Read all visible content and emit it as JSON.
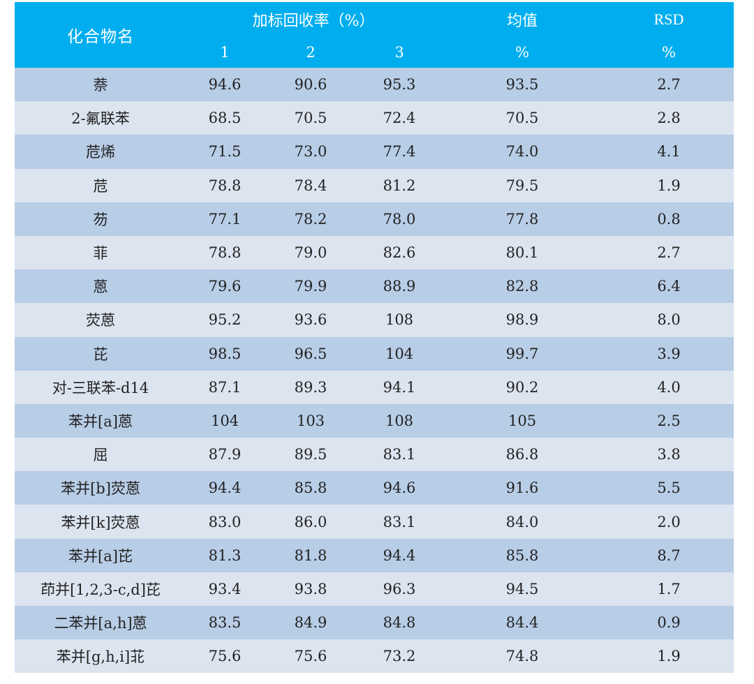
{
  "table": {
    "header": {
      "compound_name": "化合物名",
      "recovery_group": "加标回收率（%）",
      "replicates": [
        "1",
        "2",
        "3"
      ],
      "mean": "均值",
      "mean_unit": "%",
      "rsd": "RSD",
      "rsd_unit": "%"
    },
    "colors": {
      "header_bg": "#00AEEF",
      "header_text": "#FFFFFF",
      "row_dark": "#B8CDE6",
      "row_light": "#DCE4F0",
      "body_text": "#222222"
    },
    "rows": [
      {
        "name": "萘",
        "r1": "94.6",
        "r2": "90.6",
        "r3": "95.3",
        "mean": "93.5",
        "rsd": "2.7"
      },
      {
        "name": "2-氟联苯",
        "r1": "68.5",
        "r2": "70.5",
        "r3": "72.4",
        "mean": "70.5",
        "rsd": "2.8"
      },
      {
        "name": "苊烯",
        "r1": "71.5",
        "r2": "73.0",
        "r3": "77.4",
        "mean": "74.0",
        "rsd": "4.1"
      },
      {
        "name": "苊",
        "r1": "78.8",
        "r2": "78.4",
        "r3": "81.2",
        "mean": "79.5",
        "rsd": "1.9"
      },
      {
        "name": "芴",
        "r1": "77.1",
        "r2": "78.2",
        "r3": "78.0",
        "mean": "77.8",
        "rsd": "0.8"
      },
      {
        "name": "菲",
        "r1": "78.8",
        "r2": "79.0",
        "r3": "82.6",
        "mean": "80.1",
        "rsd": "2.7"
      },
      {
        "name": "蒽",
        "r1": "79.6",
        "r2": "79.9",
        "r3": "88.9",
        "mean": "82.8",
        "rsd": "6.4"
      },
      {
        "name": "荧蒽",
        "r1": "95.2",
        "r2": "93.6",
        "r3": "108",
        "mean": "98.9",
        "rsd": "8.0"
      },
      {
        "name": "芘",
        "r1": "98.5",
        "r2": "96.5",
        "r3": "104",
        "mean": "99.7",
        "rsd": "3.9"
      },
      {
        "name": "对-三联苯-d14",
        "r1": "87.1",
        "r2": "89.3",
        "r3": "94.1",
        "mean": "90.2",
        "rsd": "4.0"
      },
      {
        "name": "苯并[a]蒽",
        "r1": "104",
        "r2": "103",
        "r3": "108",
        "mean": "105",
        "rsd": "2.5"
      },
      {
        "name": "屈",
        "r1": "87.9",
        "r2": "89.5",
        "r3": "83.1",
        "mean": "86.8",
        "rsd": "3.8"
      },
      {
        "name": "苯并[b]荧蒽",
        "r1": "94.4",
        "r2": "85.8",
        "r3": "94.6",
        "mean": "91.6",
        "rsd": "5.5"
      },
      {
        "name": "苯并[k]荧蒽",
        "r1": "83.0",
        "r2": "86.0",
        "r3": "83.1",
        "mean": "84.0",
        "rsd": "2.0"
      },
      {
        "name": "苯并[a]芘",
        "r1": "81.3",
        "r2": "81.8",
        "r3": "94.4",
        "mean": "85.8",
        "rsd": "8.7"
      },
      {
        "name": "茚并[1,2,3-c,d]芘",
        "r1": "93.4",
        "r2": "93.8",
        "r3": "96.3",
        "mean": "94.5",
        "rsd": "1.7"
      },
      {
        "name": "二苯并[a,h]蒽",
        "r1": "83.5",
        "r2": "84.9",
        "r3": "84.8",
        "mean": "84.4",
        "rsd": "0.9"
      },
      {
        "name": "苯并[g,h,i]苝",
        "r1": "75.6",
        "r2": "75.6",
        "r3": "73.2",
        "mean": "74.8",
        "rsd": "1.9"
      }
    ]
  }
}
